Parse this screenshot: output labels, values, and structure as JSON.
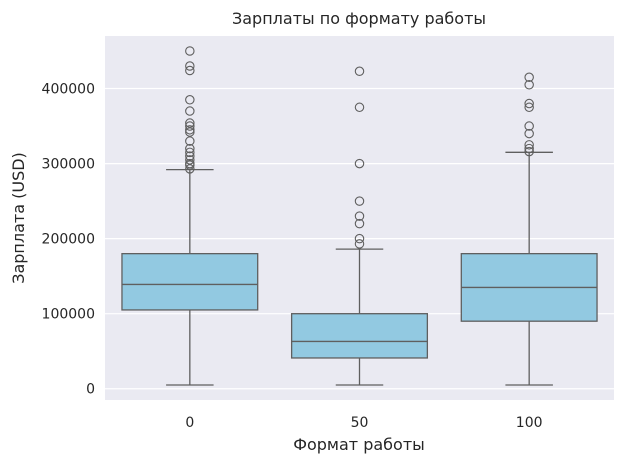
{
  "colors": {
    "box_fill": "#92c9e1",
    "line": "#5f5f5f",
    "background": "#eaeaf2",
    "grid": "#ffffff"
  },
  "chart_data": {
    "type": "box",
    "title": "Зарплаты по формату работы",
    "xlabel": "Формат работы",
    "ylabel": "Зарплата (USD)",
    "ylim": [
      -15000,
      470000
    ],
    "yticks": [
      0,
      100000,
      200000,
      300000,
      400000
    ],
    "ytick_labels": [
      "0",
      "100000",
      "200000",
      "300000",
      "400000"
    ],
    "grid": true,
    "categories": [
      "0",
      "50",
      "100"
    ],
    "boxes": [
      {
        "category": "0",
        "whisker_low": 5000,
        "q1": 105000,
        "median": 139000,
        "q3": 180000,
        "whisker_high": 292000,
        "outliers": [
          450000,
          430000,
          424000,
          385000,
          370000,
          354000,
          350000,
          345000,
          342000,
          330000,
          320000,
          315000,
          310000,
          305000,
          300000,
          298000,
          293000
        ]
      },
      {
        "category": "50",
        "whisker_low": 5000,
        "q1": 41000,
        "median": 63000,
        "q3": 100000,
        "whisker_high": 186000,
        "outliers": [
          423000,
          375000,
          300000,
          250000,
          230000,
          220000,
          200000,
          193000
        ]
      },
      {
        "category": "100",
        "whisker_low": 5000,
        "q1": 90000,
        "median": 135000,
        "q3": 180000,
        "whisker_high": 315000,
        "outliers": [
          415000,
          405000,
          380000,
          375000,
          350000,
          340000,
          325000,
          320000,
          316000
        ]
      }
    ]
  }
}
